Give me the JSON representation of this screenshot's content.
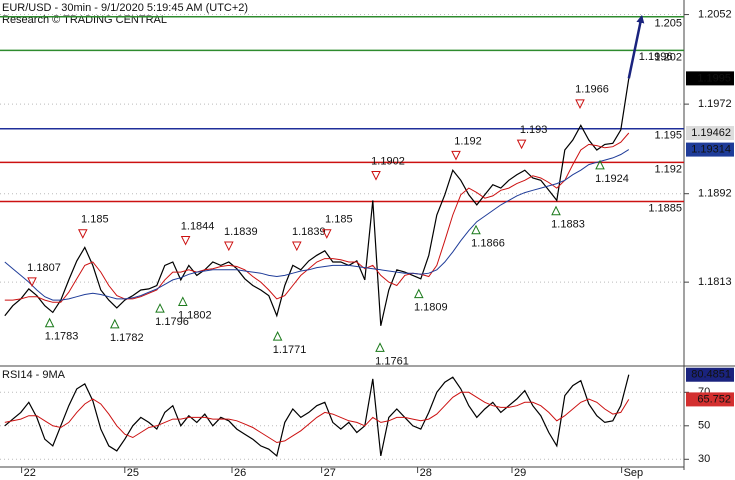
{
  "chart_data": [
    {
      "type": "line",
      "title": "EUR/USD - 30min - 9/1/2020 5:19:45 AM (UTC+2)",
      "subtitle": "Research © TRADING CENTRAL",
      "x": [
        0,
        1,
        2,
        3,
        4,
        5,
        6,
        7,
        8,
        9,
        10,
        11,
        12,
        13,
        14,
        15,
        16,
        17,
        18,
        19,
        20,
        21,
        22,
        23,
        24,
        25,
        26,
        27,
        28,
        29,
        30,
        31,
        32,
        33,
        34,
        35,
        36,
        37,
        38,
        39,
        40,
        41,
        42,
        43,
        44,
        45,
        46,
        47,
        48,
        49,
        50,
        51,
        52,
        53,
        54,
        55,
        56,
        57,
        58,
        59,
        60,
        61,
        62,
        63,
        64,
        65,
        66,
        67,
        68,
        69,
        70,
        71,
        72,
        73,
        74,
        75,
        76,
        77,
        78
      ],
      "xlim": [
        -0.6,
        84.9
      ],
      "ylim": [
        1.1739,
        1.2065
      ],
      "yticks": [
        1.2052,
        1.1972,
        1.1892,
        1.1813
      ],
      "grid": true,
      "series": [
        {
          "color": "#000000",
          "tag_color": "#000000",
          "tag_text": "#ffffff",
          "values": [
            1.1783,
            1.1792,
            1.1798,
            1.1807,
            1.1801,
            1.1792,
            1.1786,
            1.1797,
            1.1815,
            1.1832,
            1.1844,
            1.1828,
            1.1806,
            1.1797,
            1.179,
            1.1797,
            1.1801,
            1.1806,
            1.1807,
            1.181,
            1.1828,
            1.1831,
            1.1815,
            1.1828,
            1.1819,
            1.1824,
            1.1831,
            1.1828,
            1.1831,
            1.1825,
            1.1816,
            1.181,
            1.1806,
            1.1801,
            1.1783,
            1.181,
            1.1828,
            1.1824,
            1.1832,
            1.1837,
            1.1841,
            1.1831,
            1.1831,
            1.1828,
            1.1832,
            1.1815,
            1.1886,
            1.1774,
            1.1806,
            1.1824,
            1.1822,
            1.1819,
            1.1816,
            1.1837,
            1.1873,
            1.1891,
            1.1913,
            1.1904,
            1.1891,
            1.1882,
            1.1891,
            1.19,
            1.1897,
            1.1904,
            1.1909,
            1.1913,
            1.1906,
            1.1904,
            1.1895,
            1.1886,
            1.1931,
            1.194,
            1.1953,
            1.194,
            1.1931,
            1.1936,
            1.1937,
            1.1949,
            1.1995
          ]
        },
        {
          "color": "#cc1111",
          "tag_color": "#dcdcdc",
          "tag_text": "#111111",
          "values": [
            1.1797,
            1.1797,
            1.1798,
            1.18,
            1.18,
            1.1797,
            1.1795,
            1.1795,
            1.1804,
            1.1816,
            1.1828,
            1.1831,
            1.1822,
            1.181,
            1.1801,
            1.1798,
            1.1798,
            1.18,
            1.1803,
            1.1806,
            1.1815,
            1.1822,
            1.1822,
            1.1824,
            1.1822,
            1.1824,
            1.1825,
            1.1827,
            1.1828,
            1.1827,
            1.1824,
            1.1818,
            1.1813,
            1.1806,
            1.1798,
            1.1801,
            1.181,
            1.1819,
            1.1825,
            1.1831,
            1.1834,
            1.1834,
            1.1833,
            1.1831,
            1.1831,
            1.1825,
            1.1828,
            1.1819,
            1.1813,
            1.181,
            1.1819,
            1.1821,
            1.182,
            1.1818,
            1.1828,
            1.185,
            1.1873,
            1.1891,
            1.1897,
            1.1893,
            1.1888,
            1.189,
            1.1895,
            1.1897,
            1.1901,
            1.1904,
            1.1908,
            1.1906,
            1.1902,
            1.1897,
            1.1904,
            1.1918,
            1.1931,
            1.1936,
            1.1935,
            1.1933,
            1.1934,
            1.1938,
            1.19462
          ]
        },
        {
          "color": "#1f3c99",
          "tag_color": "#1f3c99",
          "tag_text": "#ffffff",
          "values": [
            1.1831,
            1.1825,
            1.1819,
            1.1813,
            1.1806,
            1.18,
            1.1797,
            1.1797,
            1.1798,
            1.18,
            1.1802,
            1.1803,
            1.1802,
            1.18,
            1.1798,
            1.1798,
            1.1799,
            1.1801,
            1.1804,
            1.1807,
            1.1811,
            1.1815,
            1.1817,
            1.182,
            1.1822,
            1.1823,
            1.1824,
            1.1824,
            1.1824,
            1.1824,
            1.1823,
            1.1822,
            1.1821,
            1.1819,
            1.1818,
            1.1819,
            1.1821,
            1.1823,
            1.1824,
            1.1826,
            1.1827,
            1.1828,
            1.1828,
            1.1828,
            1.1827,
            1.1826,
            1.1825,
            1.1824,
            1.1823,
            1.1822,
            1.1821,
            1.1821,
            1.182,
            1.1821,
            1.1824,
            1.1831,
            1.184,
            1.185,
            1.1859,
            1.1867,
            1.1872,
            1.1877,
            1.1882,
            1.1886,
            1.189,
            1.1893,
            1.1895,
            1.1897,
            1.1899,
            1.1901,
            1.1904,
            1.1909,
            1.1913,
            1.1918,
            1.192,
            1.1922,
            1.1924,
            1.1927,
            1.19314
          ]
        }
      ],
      "levels": [
        {
          "value": 1.205,
          "color": "#2e8b2e"
        },
        {
          "value": 1.202,
          "color": "#2e8b2e"
        },
        {
          "value": 1.195,
          "color": "#1f2f9a"
        },
        {
          "value": 1.192,
          "color": "#cc1111"
        },
        {
          "value": 1.1885,
          "color": "#cc1111"
        }
      ],
      "highs": [
        {
          "x": 3.4,
          "value": 1.1807
        },
        {
          "x": 9.75,
          "value": 1.185
        },
        {
          "x": 22.6,
          "value": 1.1844
        },
        {
          "x": 28,
          "value": 1.1839
        },
        {
          "x": 36.5,
          "value": 1.1839
        },
        {
          "x": 40.25,
          "value": 1.185
        },
        {
          "x": 46.4,
          "value": 1.1902
        },
        {
          "x": 56.4,
          "value": 1.192
        },
        {
          "x": 64.6,
          "value": 1.193
        },
        {
          "x": 71.9,
          "value": 1.1966
        }
      ],
      "lows": [
        {
          "x": 5.6,
          "value": 1.1783
        },
        {
          "x": 13.75,
          "value": 1.1782
        },
        {
          "x": 19.4,
          "value": 1.1796
        },
        {
          "x": 22.25,
          "value": 1.1802
        },
        {
          "x": 34.1,
          "value": 1.1771
        },
        {
          "x": 46.9,
          "value": 1.1761
        },
        {
          "x": 51.75,
          "value": 1.1809
        },
        {
          "x": 58.9,
          "value": 1.1866
        },
        {
          "x": 68.9,
          "value": 1.1883
        },
        {
          "x": 74.4,
          "value": 1.1924
        }
      ],
      "annotations": [
        {
          "x": 78,
          "value": 1.1996
        }
      ],
      "forecast": {
        "x": [
          78,
          79.6
        ],
        "values": [
          1.1995,
          1.205
        ],
        "color": "#1a237e"
      }
    },
    {
      "type": "line",
      "title": "RSI14 - 9MA",
      "x": [
        0,
        1,
        2,
        3,
        4,
        5,
        6,
        7,
        8,
        9,
        10,
        11,
        12,
        13,
        14,
        15,
        16,
        17,
        18,
        19,
        20,
        21,
        22,
        23,
        24,
        25,
        26,
        27,
        28,
        29,
        30,
        31,
        32,
        33,
        34,
        35,
        36,
        37,
        38,
        39,
        40,
        41,
        42,
        43,
        44,
        45,
        46,
        47,
        48,
        49,
        50,
        51,
        52,
        53,
        54,
        55,
        56,
        57,
        58,
        59,
        60,
        61,
        62,
        63,
        64,
        65,
        66,
        67,
        68,
        69,
        70,
        71,
        72,
        73,
        74,
        75,
        76,
        77,
        78
      ],
      "xlim": [
        -0.6,
        84.9
      ],
      "xticks": [
        {
          "value": 2.1,
          "label": "22"
        },
        {
          "value": 15,
          "label": "25"
        },
        {
          "value": 28.4,
          "label": "26"
        },
        {
          "value": 39.6,
          "label": "27"
        },
        {
          "value": 51.6,
          "label": "28"
        },
        {
          "value": 63.4,
          "label": "29"
        },
        {
          "value": 77.1,
          "label": "Sep"
        }
      ],
      "ylim": [
        25.4,
        85.1
      ],
      "yticks": [
        70,
        50,
        30
      ],
      "grid": true,
      "series": [
        {
          "color": "#000000",
          "tag_color": "#1a237e",
          "tag_text": "#ffffff",
          "values": [
            50,
            54,
            58,
            64,
            55,
            42,
            38,
            50,
            62,
            72,
            75,
            65,
            48,
            38,
            35,
            42,
            50,
            55,
            52,
            48,
            58,
            62,
            50,
            56,
            52,
            57,
            50,
            55,
            53,
            48,
            45,
            42,
            38,
            36,
            32,
            52,
            60,
            55,
            58,
            62,
            64,
            52,
            48,
            52,
            46,
            50,
            78,
            32,
            55,
            60,
            55,
            50,
            48,
            58,
            70,
            76,
            79,
            72,
            62,
            55,
            60,
            64,
            58,
            62,
            66,
            71,
            62,
            56,
            46,
            38,
            68,
            74,
            77,
            63,
            56,
            52,
            53,
            62,
            80.4851
          ]
        },
        {
          "color": "#cc1111",
          "tag_color": "#d32f2f",
          "tag_text": "#ffffff",
          "values": [
            52,
            53,
            54,
            56,
            56,
            53,
            50,
            49,
            52,
            58,
            63,
            66,
            63,
            57,
            50,
            45,
            43,
            46,
            49,
            50,
            52,
            54,
            54,
            55,
            55,
            55,
            54,
            54,
            54,
            53,
            51,
            49,
            46,
            43,
            40,
            41,
            44,
            47,
            51,
            55,
            58,
            57,
            55,
            53,
            52,
            50,
            55,
            52,
            53,
            55,
            55,
            54,
            53,
            54,
            57,
            62,
            67,
            70,
            70,
            67,
            64,
            62,
            61,
            61,
            62,
            64,
            64,
            62,
            58,
            53,
            56,
            60,
            64,
            66,
            64,
            60,
            57,
            58,
            65.752
          ]
        }
      ]
    }
  ]
}
